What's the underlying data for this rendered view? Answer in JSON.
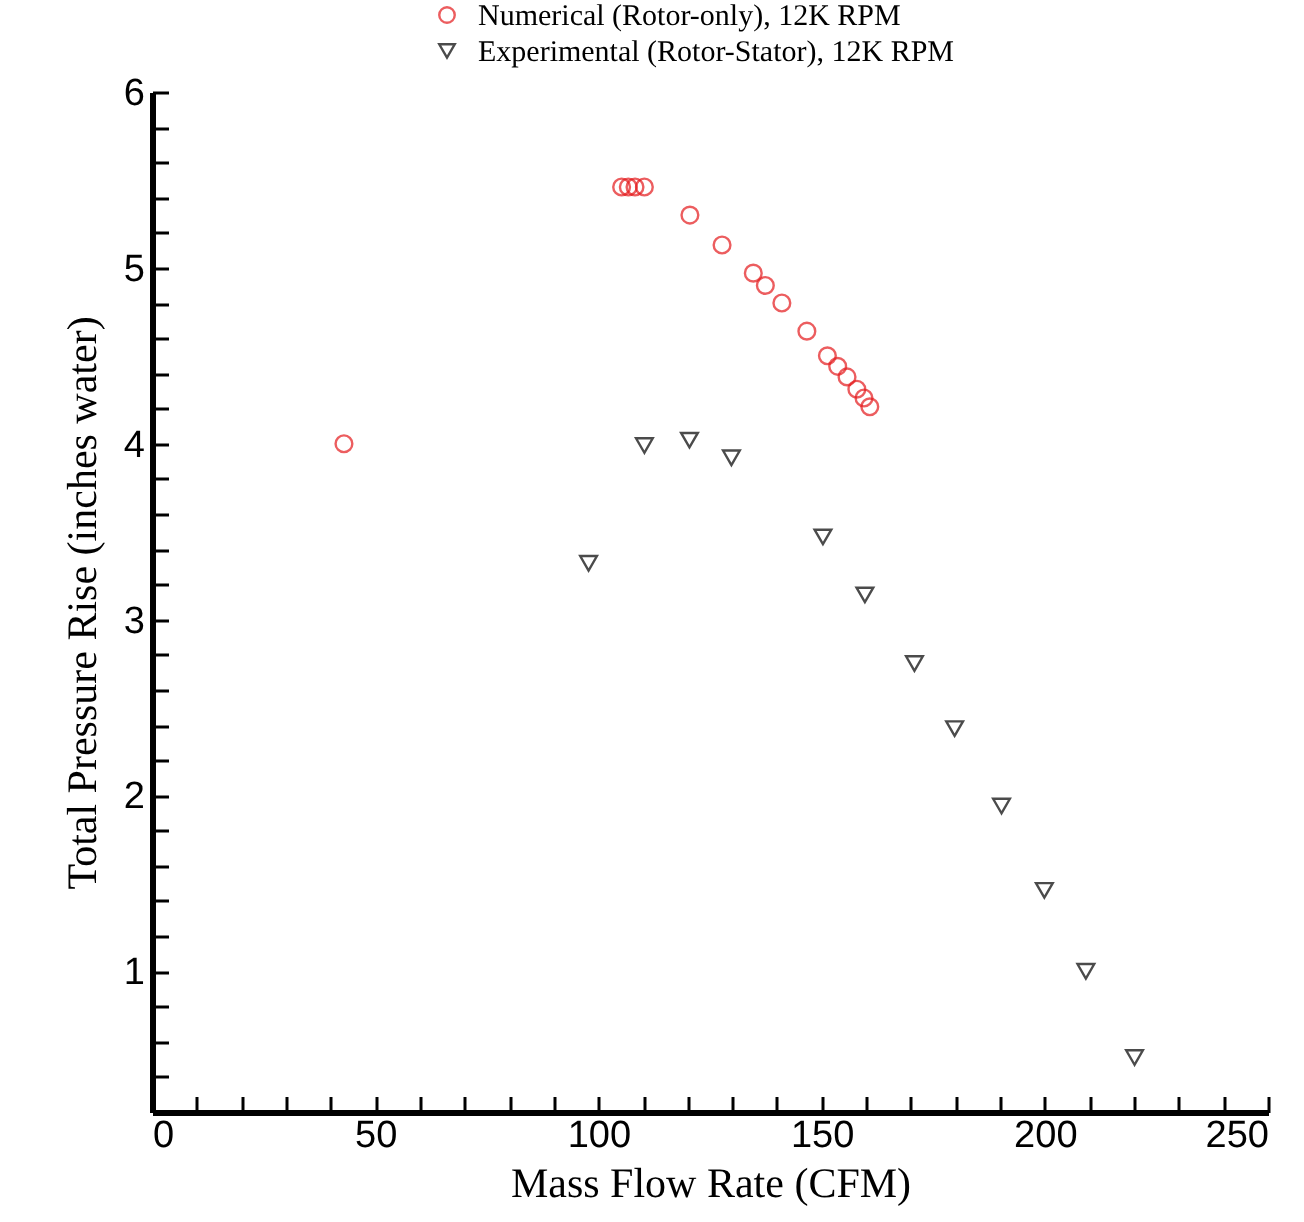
{
  "chart_data": {
    "type": "scatter",
    "xlabel": "Mass Flow Rate (CFM)",
    "ylabel": "Total Pressure Rise (inches water)",
    "xlim": [
      0,
      250
    ],
    "ylim": [
      0.2,
      6
    ],
    "xticks": [
      0,
      {
        "value": 10,
        "label": null
      },
      {
        "value": 20,
        "label": null
      },
      {
        "value": 30,
        "label": null
      },
      {
        "value": 40,
        "label": null
      },
      50,
      {
        "value": 60,
        "label": null
      },
      {
        "value": 70,
        "label": null
      },
      {
        "value": 80,
        "label": null
      },
      {
        "value": 90,
        "label": null
      },
      100,
      {
        "value": 110,
        "label": null
      },
      {
        "value": 120,
        "label": null
      },
      {
        "value": 130,
        "label": null
      },
      {
        "value": 140,
        "label": null
      },
      150,
      {
        "value": 160,
        "label": null
      },
      {
        "value": 170,
        "label": null
      },
      {
        "value": 180,
        "label": null
      },
      {
        "value": 190,
        "label": null
      },
      200,
      {
        "value": 210,
        "label": null
      },
      {
        "value": 220,
        "label": null
      },
      {
        "value": 230,
        "label": null
      },
      {
        "value": 240,
        "label": null
      },
      250
    ],
    "yticks": [
      {
        "value": 0.2,
        "label": null
      },
      {
        "value": 0.4,
        "label": null
      },
      {
        "value": 0.6,
        "label": null
      },
      {
        "value": 0.8,
        "label": null
      },
      1,
      {
        "value": 1.2,
        "label": null
      },
      {
        "value": 1.4,
        "label": null
      },
      {
        "value": 1.6,
        "label": null
      },
      {
        "value": 1.8,
        "label": null
      },
      2,
      {
        "value": 2.2,
        "label": null
      },
      {
        "value": 2.4,
        "label": null
      },
      {
        "value": 2.6,
        "label": null
      },
      {
        "value": 2.8,
        "label": null
      },
      3,
      {
        "value": 3.2,
        "label": null
      },
      {
        "value": 3.4,
        "label": null
      },
      {
        "value": 3.6,
        "label": null
      },
      {
        "value": 3.8,
        "label": null
      },
      4,
      {
        "value": 4.2,
        "label": null
      },
      {
        "value": 4.4,
        "label": null
      },
      {
        "value": 4.6,
        "label": null
      },
      {
        "value": 4.8,
        "label": null
      },
      5,
      {
        "value": 5.2,
        "label": null
      },
      {
        "value": 5.4,
        "label": null
      },
      {
        "value": 5.6,
        "label": null
      },
      {
        "value": 5.8,
        "label": null
      },
      6
    ],
    "grid": false,
    "legend": "top",
    "series": [
      {
        "name": "Numerical (Rotor-only), 12K RPM",
        "color": "#e41a1c",
        "marker": "circle",
        "x": [
          43,
          105.2,
          106.7,
          108.2,
          110.3,
          120.5,
          127.7,
          134.7,
          137.4,
          141.1,
          146.7,
          151.3,
          153.6,
          155.7,
          157.9,
          159.5,
          160.8
        ],
        "values": [
          4.0,
          5.46,
          5.46,
          5.46,
          5.46,
          5.3,
          5.13,
          4.97,
          4.9,
          4.8,
          4.64,
          4.5,
          4.44,
          4.38,
          4.31,
          4.26,
          4.21
        ]
      },
      {
        "name": "Experimental (Rotor-Stator), 12K RPM",
        "color": "#000000",
        "marker": "triangle",
        "x": [
          97.8,
          110.3,
          120.4,
          129.8,
          150.3,
          159.7,
          170.8,
          179.8,
          190.3,
          199.9,
          209.2,
          220.1
        ],
        "values": [
          3.32,
          3.99,
          4.02,
          3.92,
          3.47,
          3.14,
          2.75,
          2.38,
          1.94,
          1.46,
          1.0,
          0.51
        ]
      }
    ]
  }
}
